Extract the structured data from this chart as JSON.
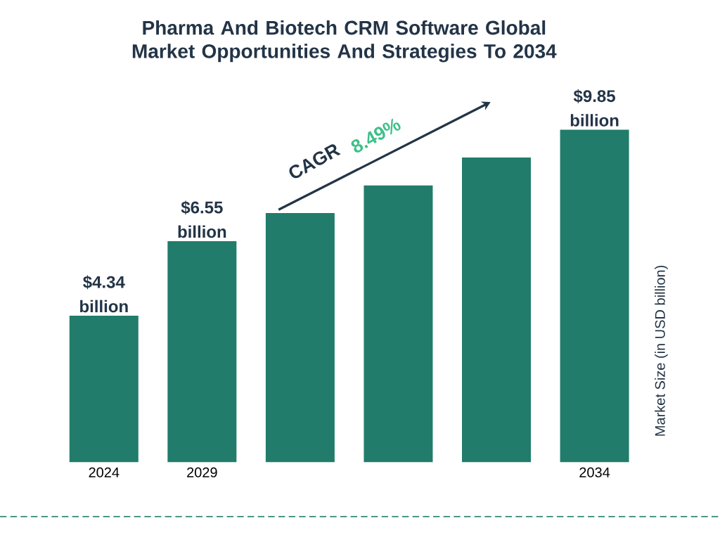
{
  "chart_data": {
    "type": "bar",
    "title": "Pharma And Biotech CRM Software Global Market Opportunities And Strategies To 2034",
    "ylabel": "Market Size (in USD billion)",
    "categories": [
      "2024",
      "2029",
      null,
      null,
      null,
      "2034"
    ],
    "values": [
      4.34,
      6.55,
      7.38,
      8.2,
      9.03,
      9.85
    ],
    "value_labels": [
      "$4.34 billion",
      "$6.55 billion",
      null,
      null,
      null,
      "$9.85 billion"
    ],
    "color": "#217c6b",
    "annotations": [
      "CAGR",
      "8.49%"
    ]
  }
}
